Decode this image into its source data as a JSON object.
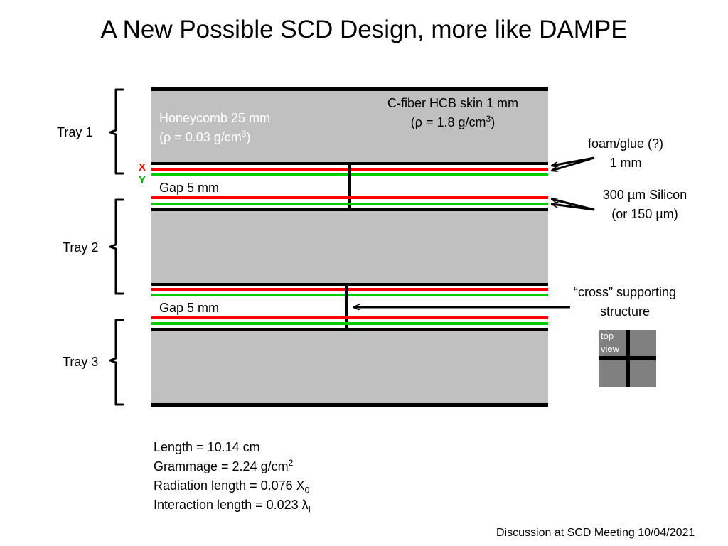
{
  "title": "A New Possible SCD Design, more like DAMPE",
  "trays": {
    "tray1": "Tray 1",
    "tray2": "Tray 2",
    "tray3": "Tray 3"
  },
  "xy": {
    "x": "X",
    "y": "Y"
  },
  "labels": {
    "honeycomb_line1": "Honeycomb 25 mm",
    "honeycomb_line2_pre": "(ρ = 0.03 g/cm",
    "honeycomb_line2_sup": "3",
    "honeycomb_line2_post": ")",
    "cfiber_line1": "C-fiber HCB skin 1 mm",
    "cfiber_line2_pre": "(ρ = 1.8 g/cm",
    "cfiber_line2_sup": "3",
    "cfiber_line2_post": ")",
    "gap1": "Gap 5 mm",
    "gap2": "Gap 5 mm",
    "foam_line1": "foam/glue (?)",
    "foam_line2": "1 mm",
    "silicon_line1": "300 µm Silicon",
    "silicon_line2": "(or 150 µm)",
    "cross_line1": "“cross” supporting",
    "cross_line2": "structure",
    "topview_line1": "top",
    "topview_line2": "view"
  },
  "stats": {
    "length": "Length = 10.14 cm",
    "grammage_pre": "Grammage = 2.24 g/cm",
    "grammage_sup": "2",
    "radiation_pre": "Radiation length = 0.076 X",
    "radiation_sub": "0",
    "interaction_pre": "Interaction length = 0.023 λ",
    "interaction_sub": "I"
  },
  "footer": "Discussion at SCD Meeting 10/04/2021",
  "colors": {
    "honeycomb": "#c0c0c0",
    "skin": "#000000",
    "x_layer": "#ff0000",
    "y_layer": "#00cc00",
    "topview": "#808080"
  }
}
